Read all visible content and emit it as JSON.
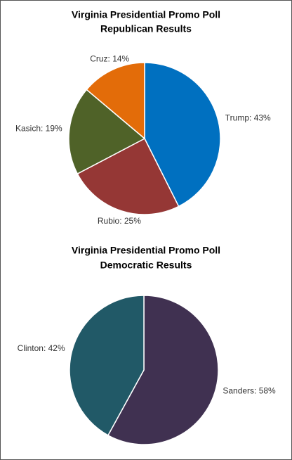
{
  "chart_data": [
    {
      "type": "pie",
      "title": "Virginia Presidential Promo Poll",
      "subtitle": "Republican Results",
      "values": [
        43,
        25,
        19,
        14
      ],
      "value_labels": [
        "Trump: 43%",
        "Rubio: 25%",
        "Kasich: 19%",
        "Cruz: 14%"
      ],
      "colors": [
        "#0070c0",
        "#953735",
        "#4f6228",
        "#e36c09"
      ]
    },
    {
      "type": "pie",
      "title": "Virginia Presidential Promo Poll",
      "subtitle": "Democratic Results",
      "values": [
        58,
        42
      ],
      "value_labels": [
        "Sanders: 58%",
        "Clinton: 42%"
      ],
      "colors": [
        "#403151",
        "#215967"
      ]
    }
  ]
}
